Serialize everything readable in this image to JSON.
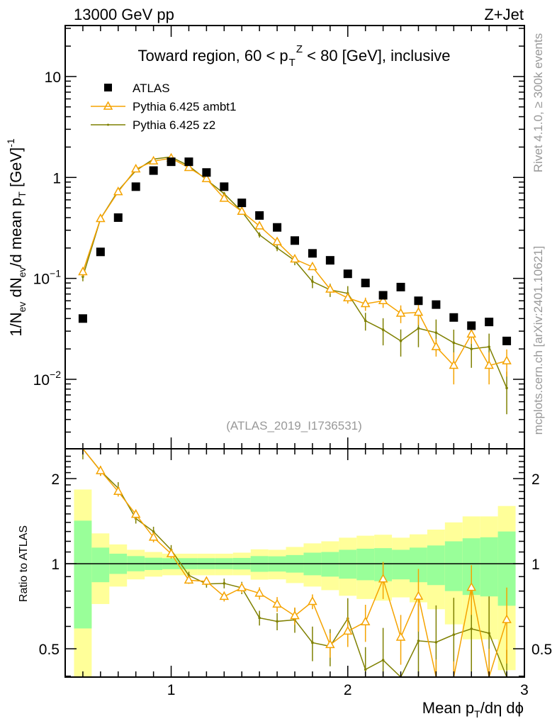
{
  "header": {
    "left": "13000 GeV pp",
    "right": "Z+Jet"
  },
  "side_labels": {
    "rivet": "Rivet 4.1.0, ≥ 300k events",
    "mcplots": "mcplots.cern.ch [arXiv:2401.10621]"
  },
  "chart_data": [
    {
      "type": "scatter",
      "title": {
        "pre": "Toward region, 60 < p",
        "sub": "T",
        "sup": "Z",
        "post": " < 80 [GeV], inclusive"
      },
      "annotation": "(ATLAS_2019_I1736531)",
      "ylabel": {
        "a": "1/N",
        "a_sub": "ev",
        "b": " dN",
        "b_sub": "ev",
        "c": "/d mean p",
        "c_sub": "T",
        "d": " [GeV]",
        "d_sup": "-1"
      },
      "yscale": "log",
      "xlim": [
        0.4,
        3.0
      ],
      "ylim": [
        0.00205,
        32
      ],
      "yticks": [
        {
          "v": 10,
          "label": "10"
        },
        {
          "v": 1,
          "label": "1"
        },
        {
          "v": 0.1,
          "base": "10",
          "exp": "−1"
        },
        {
          "v": 0.01,
          "base": "10",
          "exp": "−2"
        }
      ],
      "legend_position": "top-left",
      "x": [
        0.5,
        0.6,
        0.7,
        0.8,
        0.9,
        1.0,
        1.1,
        1.2,
        1.3,
        1.4,
        1.5,
        1.6,
        1.7,
        1.8,
        1.9,
        2.0,
        2.1,
        2.2,
        2.3,
        2.4,
        2.5,
        2.6,
        2.7,
        2.8,
        2.9
      ],
      "series": [
        {
          "name": "ATLAS",
          "color": "#000000",
          "marker": "square",
          "values": [
            0.04,
            0.183,
            0.4,
            0.81,
            1.17,
            1.43,
            1.43,
            1.12,
            0.81,
            0.56,
            0.42,
            0.32,
            0.237,
            0.177,
            0.151,
            0.111,
            0.09,
            0.068,
            0.082,
            0.06,
            0.055,
            0.041,
            0.034,
            0.037,
            0.024
          ],
          "rel_err": [
            0.02,
            0.02,
            0.02,
            0.02,
            0.02,
            0.02,
            0.02,
            0.02,
            0.02,
            0.02,
            0.02,
            0.02,
            0.02,
            0.02,
            0.02,
            0.02,
            0.02,
            0.02,
            0.02,
            0.02,
            0.02,
            0.02,
            0.02,
            0.02,
            0.02
          ]
        },
        {
          "name": "Pythia 6.425 ambt1",
          "color": "#f5a300",
          "marker": "triangle",
          "values": [
            0.116,
            0.39,
            0.72,
            1.21,
            1.45,
            1.55,
            1.25,
            0.97,
            0.62,
            0.46,
            0.33,
            0.23,
            0.155,
            0.13,
            0.078,
            0.064,
            0.056,
            0.06,
            0.045,
            0.046,
            0.021,
            0.0137,
            0.028,
            0.0137,
            0.0152
          ],
          "rel_err": [
            0.1,
            0.04,
            0.04,
            0.04,
            0.04,
            0.04,
            0.03,
            0.03,
            0.04,
            0.04,
            0.05,
            0.06,
            0.07,
            0.06,
            0.1,
            0.12,
            0.15,
            0.15,
            0.2,
            0.25,
            0.2,
            0.35,
            0.2,
            0.35,
            0.3
          ]
        },
        {
          "name": "Pythia 6.425 z2",
          "color": "#7f8000",
          "marker": "dot",
          "values": [
            0.104,
            0.39,
            0.74,
            1.17,
            1.52,
            1.6,
            1.3,
            0.95,
            0.69,
            0.46,
            0.27,
            0.2,
            0.15,
            0.093,
            0.077,
            0.071,
            0.038,
            0.031,
            0.024,
            0.032,
            0.029,
            0.023,
            0.02,
            0.021,
            0.0082
          ],
          "rel_err": [
            0.1,
            0.04,
            0.05,
            0.04,
            0.04,
            0.04,
            0.03,
            0.03,
            0.04,
            0.05,
            0.06,
            0.07,
            0.1,
            0.14,
            0.15,
            0.18,
            0.2,
            0.3,
            0.3,
            0.35,
            0.35,
            0.35,
            0.35,
            0.35,
            0.45
          ]
        }
      ]
    },
    {
      "type": "line",
      "ylabel": "Ratio to ATLAS",
      "xlabel": {
        "a": "Mean p",
        "a_sub": "T",
        "b": "/dη dϕ"
      },
      "yscale": "log2",
      "xlim": [
        0.4,
        3.0
      ],
      "ylim": [
        0.397,
        2.55
      ],
      "xticks": [
        "1",
        "2",
        "3"
      ],
      "yticks": [
        "2",
        "1",
        "0.5"
      ],
      "band_colors": {
        "total": "#ffff99",
        "stat": "#99ff99"
      },
      "bin_edges": [
        0.45,
        0.55,
        0.65,
        0.75,
        0.85,
        0.95,
        1.05,
        1.15,
        1.25,
        1.35,
        1.45,
        1.55,
        1.65,
        1.75,
        1.85,
        1.95,
        2.05,
        2.15,
        2.25,
        2.35,
        2.45,
        2.55,
        2.65,
        2.75,
        2.85,
        2.95
      ],
      "total_band_upper": [
        1.83,
        1.28,
        1.17,
        1.12,
        1.1,
        1.085,
        1.085,
        1.085,
        1.085,
        1.094,
        1.124,
        1.12,
        1.146,
        1.18,
        1.2,
        1.236,
        1.256,
        1.266,
        1.236,
        1.27,
        1.32,
        1.4,
        1.47,
        1.47,
        1.6
      ],
      "total_band_lower": [
        0.3,
        0.72,
        0.83,
        0.88,
        0.9,
        0.91,
        0.91,
        0.91,
        0.91,
        0.91,
        0.878,
        0.88,
        0.854,
        0.83,
        0.806,
        0.77,
        0.75,
        0.74,
        0.76,
        0.73,
        0.69,
        0.61,
        0.54,
        0.54,
        0.42
      ],
      "stat_band_upper": [
        1.42,
        1.14,
        1.085,
        1.064,
        1.05,
        1.046,
        1.046,
        1.046,
        1.046,
        1.048,
        1.064,
        1.062,
        1.073,
        1.094,
        1.1,
        1.12,
        1.13,
        1.135,
        1.12,
        1.14,
        1.16,
        1.2,
        1.23,
        1.24,
        1.3
      ],
      "stat_band_lower": [
        0.59,
        0.86,
        0.92,
        0.94,
        0.95,
        0.956,
        0.956,
        0.956,
        0.956,
        0.954,
        0.936,
        0.938,
        0.93,
        0.91,
        0.9,
        0.885,
        0.874,
        0.867,
        0.88,
        0.86,
        0.84,
        0.8,
        0.775,
        0.766,
        0.71
      ],
      "reference_line": 1
    }
  ]
}
